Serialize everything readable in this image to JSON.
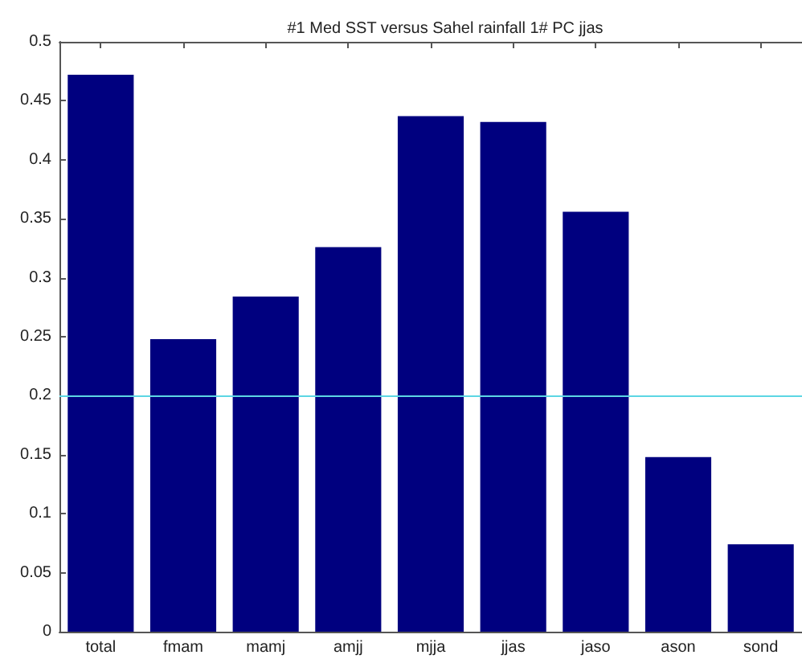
{
  "chart_data": {
    "type": "bar",
    "title": "#1 Med SST versus Sahel rainfall 1# PC jjas",
    "categories": [
      "total",
      "fmam",
      "mamj",
      "amjj",
      "mjja",
      "jjas",
      "jaso",
      "ason",
      "sond"
    ],
    "values": [
      0.472,
      0.248,
      0.284,
      0.326,
      0.437,
      0.432,
      0.356,
      0.148,
      0.074
    ],
    "color": "#00007f",
    "ylim": [
      0,
      0.5
    ],
    "yticks": [
      0,
      0.05,
      0.1,
      0.15,
      0.2,
      0.25,
      0.3,
      0.35,
      0.4,
      0.45,
      0.5
    ],
    "ref_lines": [
      {
        "axis": "y",
        "value": 0.2,
        "color": "#5cd6e4"
      }
    ],
    "grid": false
  }
}
